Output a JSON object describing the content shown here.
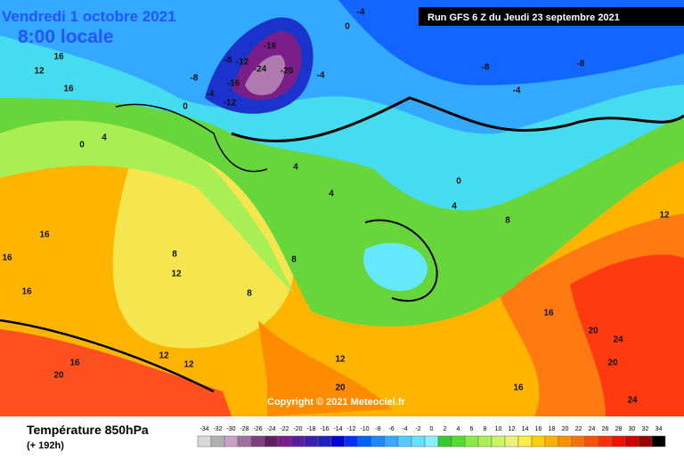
{
  "header": {
    "date": "Vendredi 1 octobre 2021",
    "time": "8:00 locale",
    "run": "Run GFS 6 Z du Jeudi 23 septembre 2021"
  },
  "copyright": "Copyright © 2021 Meteociel.fr",
  "footer": {
    "title": "Température 850hPa",
    "lead": "(+ 192h)"
  },
  "legend": {
    "labels": [
      -34,
      -32,
      -30,
      -28,
      -26,
      -24,
      -22,
      -20,
      -18,
      -16,
      -14,
      -12,
      -10,
      -8,
      -6,
      -4,
      -2,
      0,
      2,
      4,
      6,
      8,
      10,
      12,
      14,
      16,
      18,
      20,
      22,
      24,
      26,
      28,
      30,
      32,
      34
    ],
    "colors": [
      "#d8d8d8",
      "#b0b0b0",
      "#c8a0c8",
      "#a070a0",
      "#804080",
      "#602060",
      "#7a1f8a",
      "#5a1aa0",
      "#3a20b0",
      "#2020c0",
      "#0000d8",
      "#0030ff",
      "#0060ff",
      "#1a88ff",
      "#33aaff",
      "#55ccff",
      "#66e0ff",
      "#88f0ff",
      "#33cc33",
      "#55dd33",
      "#88ee44",
      "#aaf055",
      "#ccf566",
      "#eef077",
      "#ffee44",
      "#ffd000",
      "#ffb000",
      "#ff9000",
      "#ff7000",
      "#ff5000",
      "#ff3000",
      "#ee1000",
      "#cc0000",
      "#990000",
      "#000000"
    ]
  },
  "map": {
    "labels": [
      -16,
      -20,
      -24,
      -12,
      -16,
      -12,
      -8,
      -8,
      -4,
      0,
      -4,
      -8,
      -8,
      -4,
      -4,
      0,
      16,
      12,
      16,
      4,
      0,
      4,
      4,
      0,
      4,
      8,
      12,
      8,
      12,
      8,
      8,
      16,
      16,
      16,
      12,
      16,
      20,
      12,
      12,
      20,
      20,
      24,
      20,
      24,
      16,
      16
    ]
  }
}
